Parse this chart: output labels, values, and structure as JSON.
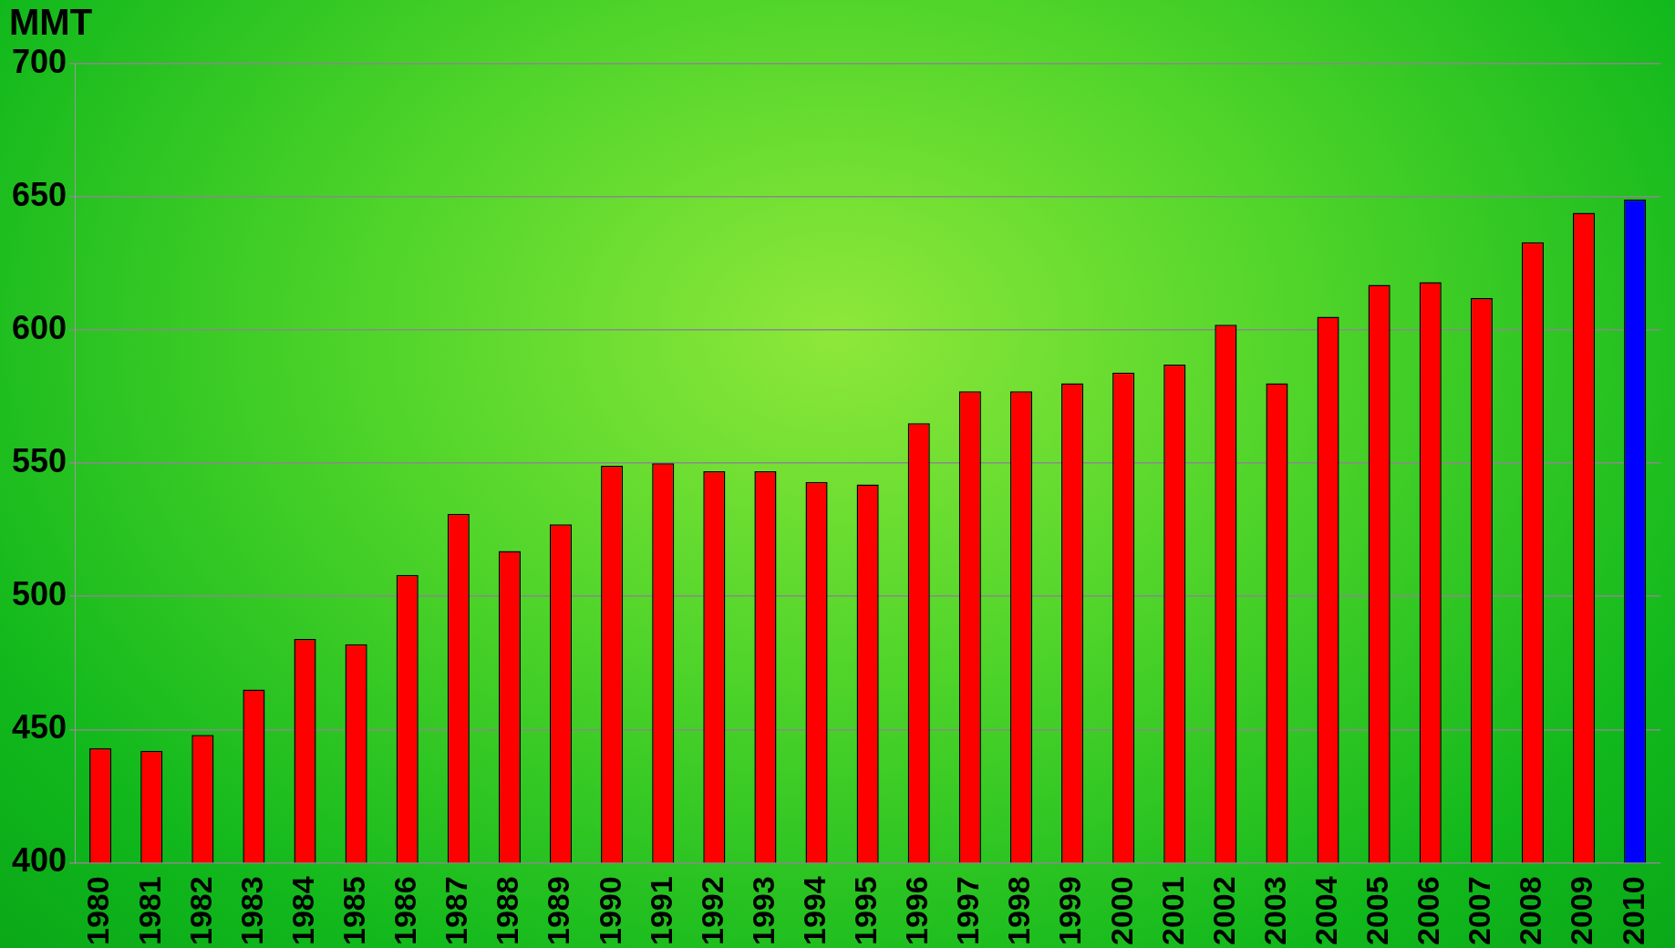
{
  "chart_data": {
    "type": "bar",
    "ylabel": "MMT",
    "categories": [
      "1980",
      "1981",
      "1982",
      "1983",
      "1984",
      "1985",
      "1986",
      "1987",
      "1988",
      "1989",
      "1990",
      "1991",
      "1992",
      "1993",
      "1994",
      "1995",
      "1996",
      "1997",
      "1998",
      "1999",
      "2000",
      "2001",
      "2002",
      "2003",
      "2004",
      "2005",
      "2006",
      "2007",
      "2008",
      "2009",
      "2010"
    ],
    "values": [
      443,
      442,
      448,
      465,
      484,
      482,
      508,
      531,
      517,
      527,
      549,
      550,
      547,
      547,
      543,
      542,
      565,
      577,
      577,
      580,
      584,
      587,
      602,
      580,
      605,
      617,
      618,
      612,
      633,
      644,
      649
    ],
    "colors": [
      "#ff0000",
      "#ff0000",
      "#ff0000",
      "#ff0000",
      "#ff0000",
      "#ff0000",
      "#ff0000",
      "#ff0000",
      "#ff0000",
      "#ff0000",
      "#ff0000",
      "#ff0000",
      "#ff0000",
      "#ff0000",
      "#ff0000",
      "#ff0000",
      "#ff0000",
      "#ff0000",
      "#ff0000",
      "#ff0000",
      "#ff0000",
      "#ff0000",
      "#ff0000",
      "#ff0000",
      "#ff0000",
      "#ff0000",
      "#ff0000",
      "#ff0000",
      "#ff0000",
      "#ff0000",
      "#0000ff"
    ],
    "ylim": [
      400,
      700
    ],
    "yticks": [
      400,
      450,
      500,
      550,
      600,
      650,
      700
    ],
    "grid": "y",
    "legend": false
  }
}
